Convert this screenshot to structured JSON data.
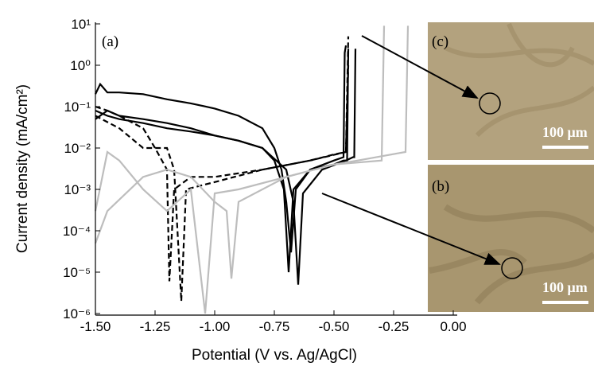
{
  "chart_data": {
    "type": "line",
    "xlabel": "Potential (V vs. Ag/AgCl)",
    "ylabel": "Current density (mA/cm²)",
    "xlim": [
      -1.5,
      0
    ],
    "ylim": [
      1e-06,
      10
    ],
    "ylog": true,
    "xticks": [
      {
        "value": -1.5,
        "label": "-1.50"
      },
      {
        "value": -1.25,
        "label": "-1.25"
      },
      {
        "value": -1,
        "label": "-1.00"
      },
      {
        "value": -0.75,
        "label": "-0.75"
      },
      {
        "value": -0.5,
        "label": "-0.50"
      },
      {
        "value": -0.25,
        "label": "-0.25"
      },
      {
        "value": 0,
        "label": "0.00"
      }
    ],
    "yticks": [
      {
        "value": 10,
        "label": "10¹"
      },
      {
        "value": 1,
        "label": "10⁰"
      },
      {
        "value": 0.1,
        "label": "10⁻¹"
      },
      {
        "value": 0.01,
        "label": "10⁻²"
      },
      {
        "value": 0.001,
        "label": "10⁻³"
      },
      {
        "value": 0.0001,
        "label": "10⁻⁴"
      },
      {
        "value": 1e-05,
        "label": "10⁻⁵"
      },
      {
        "value": 1e-06,
        "label": "10⁻⁶"
      }
    ],
    "annotations": [
      "(a)",
      "(c)",
      "(b)",
      "100 μm",
      "100 μm"
    ],
    "series": [
      {
        "color": "#000000",
        "dash": false,
        "x": [
          -1.5,
          -1.48,
          -1.45,
          -1.4,
          -1.3,
          -1.2,
          -1.1,
          -1.0,
          -0.9,
          -0.8,
          -0.75,
          -0.72,
          -0.7,
          -0.68,
          -0.66,
          -0.6,
          -0.5,
          -0.46,
          -0.455,
          -0.45
        ],
        "values": [
          0.2,
          0.35,
          0.22,
          0.22,
          0.2,
          0.15,
          0.12,
          0.09,
          0.06,
          0.03,
          0.01,
          0.003,
          0.0005,
          3e-05,
          0.001,
          0.003,
          0.005,
          0.006,
          2,
          3
        ]
      },
      {
        "color": "#000000",
        "dash": false,
        "x": [
          -1.5,
          -1.45,
          -1.4,
          -1.3,
          -1.2,
          -1.1,
          -1.0,
          -0.9,
          -0.8,
          -0.75,
          -0.71,
          -0.69,
          -0.67,
          -0.6,
          -0.5,
          -0.46,
          -0.445,
          -0.44
        ],
        "values": [
          0.08,
          0.06,
          0.05,
          0.04,
          0.03,
          0.025,
          0.02,
          0.015,
          0.01,
          0.005,
          0.001,
          1e-05,
          0.001,
          0.003,
          0.004,
          0.005,
          0.005,
          2.5
        ]
      },
      {
        "color": "#000000",
        "dash": false,
        "x": [
          -1.5,
          -1.45,
          -1.4,
          -1.3,
          -1.2,
          -1.1,
          -1.0,
          -0.9,
          -0.8,
          -0.7,
          -0.67,
          -0.65,
          -0.63,
          -0.55,
          -0.45,
          -0.42,
          -0.415,
          -0.41
        ],
        "values": [
          0.05,
          0.08,
          0.06,
          0.05,
          0.04,
          0.03,
          0.02,
          0.015,
          0.01,
          0.003,
          0.0005,
          5e-06,
          0.0008,
          0.003,
          0.005,
          0.006,
          0.006,
          2.5
        ]
      },
      {
        "color": "#000000",
        "dash": true,
        "x": [
          -1.5,
          -1.45,
          -1.4,
          -1.3,
          -1.25,
          -1.2,
          -1.19,
          -1.17,
          -1.1,
          -1.0,
          -0.8,
          -0.6,
          -0.5,
          -0.45,
          -0.44
        ],
        "values": [
          0.1,
          0.08,
          0.06,
          0.03,
          0.01,
          0.003,
          6e-06,
          0.001,
          0.002,
          0.002,
          0.003,
          0.005,
          0.007,
          0.008,
          5
        ]
      },
      {
        "color": "#000000",
        "dash": true,
        "x": [
          -1.5,
          -1.4,
          -1.3,
          -1.2,
          -1.17,
          -1.14,
          -1.12,
          -1.0,
          -0.8,
          -0.6,
          -0.45,
          -0.44
        ],
        "values": [
          0.06,
          0.03,
          0.01,
          0.01,
          0.003,
          2e-06,
          0.001,
          0.0015,
          0.003,
          0.005,
          0.008,
          1
        ]
      },
      {
        "color": "#bdbdbd",
        "dash": false,
        "x": [
          -1.5,
          -1.45,
          -1.4,
          -1.3,
          -1.2,
          -1.1,
          -1.04,
          -1.0,
          -0.9,
          -0.7,
          -0.5,
          -0.3,
          -0.29
        ],
        "values": [
          0.0003,
          0.008,
          0.005,
          0.001,
          0.0003,
          0.001,
          1e-06,
          0.0008,
          0.001,
          0.002,
          0.004,
          0.005,
          9
        ]
      },
      {
        "color": "#bdbdbd",
        "dash": false,
        "x": [
          -1.5,
          -1.45,
          -1.3,
          -1.2,
          -1.1,
          -1.0,
          -0.95,
          -0.93,
          -0.9,
          -0.7,
          -0.5,
          -0.4,
          -0.2,
          -0.19
        ],
        "values": [
          5e-05,
          0.0003,
          0.002,
          0.003,
          0.002,
          0.0005,
          0.0003,
          7e-06,
          0.0005,
          0.002,
          0.004,
          0.005,
          0.008,
          9
        ]
      }
    ]
  }
}
